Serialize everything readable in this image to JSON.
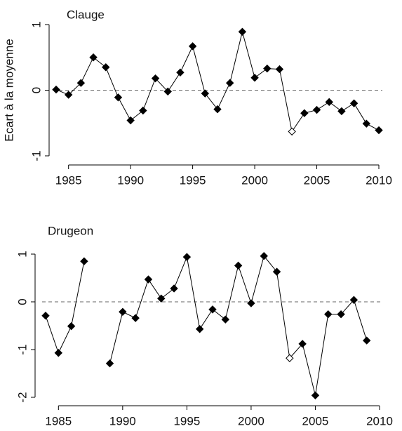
{
  "chart_data": [
    {
      "type": "line",
      "title": "Clauge",
      "ylabel": "Ecart à la moyenne",
      "x": [
        1984,
        1985,
        1986,
        1987,
        1988,
        1989,
        1990,
        1991,
        1992,
        1993,
        1994,
        1995,
        1996,
        1997,
        1998,
        1999,
        2000,
        2001,
        2002,
        2003,
        2004,
        2005,
        2006,
        2007,
        2008,
        2009,
        2010
      ],
      "series": [
        {
          "name": "Clauge",
          "color": "#000000",
          "values": [
            0.01,
            -0.07,
            0.11,
            0.5,
            0.35,
            -0.11,
            -0.46,
            -0.31,
            0.18,
            -0.02,
            0.27,
            0.67,
            -0.05,
            -0.29,
            0.11,
            0.89,
            0.19,
            0.33,
            0.32,
            -0.63,
            -0.35,
            -0.3,
            -0.18,
            -0.32,
            -0.2,
            -0.51,
            -0.61
          ]
        }
      ],
      "hollow_x": [
        2003
      ],
      "hline": 0,
      "xlim": [
        1984,
        2010
      ],
      "xticks": [
        1985,
        1990,
        1995,
        2000,
        2005,
        2010
      ],
      "ylim": [
        -1,
        1
      ],
      "yticks": [
        -1,
        0,
        1
      ]
    },
    {
      "type": "line",
      "title": "Drugeon",
      "x": [
        1984,
        1985,
        1986,
        1987,
        1988,
        1989,
        1990,
        1991,
        1992,
        1993,
        1994,
        1995,
        1996,
        1997,
        1998,
        1999,
        2000,
        2001,
        2002,
        2003,
        2004,
        2005,
        2006,
        2007,
        2008,
        2009
      ],
      "series": [
        {
          "name": "Drugeon",
          "color": "#000000",
          "values": [
            -0.29,
            -1.07,
            -0.51,
            0.85,
            null,
            -1.29,
            -0.21,
            -0.34,
            0.47,
            0.07,
            0.28,
            0.94,
            -0.57,
            -0.16,
            -0.37,
            0.76,
            -0.03,
            0.96,
            0.63,
            -1.18,
            -0.88,
            -1.96,
            -0.26,
            -0.26,
            0.04,
            -0.81
          ]
        }
      ],
      "hollow_x": [
        2003
      ],
      "hline": 0,
      "xlim": [
        1984,
        2010
      ],
      "xticks": [
        1985,
        1990,
        1995,
        2000,
        2005,
        2010
      ],
      "ylim": [
        -2,
        1
      ],
      "yticks": [
        -2,
        -1,
        0,
        1
      ]
    }
  ]
}
